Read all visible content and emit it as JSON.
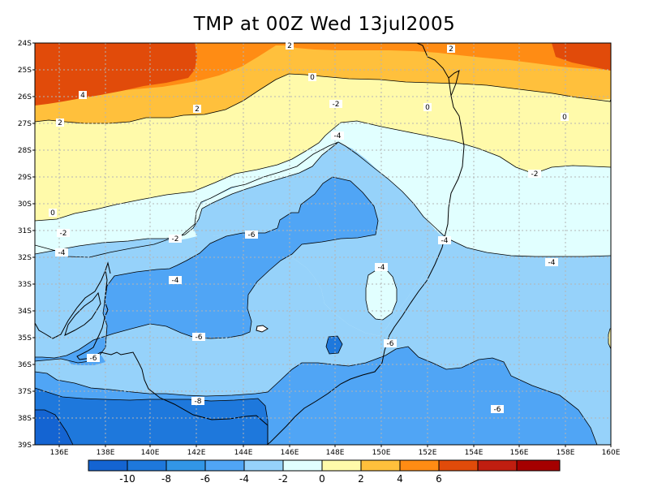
{
  "title": "TMP at 00Z Wed 13jul2005",
  "map": {
    "lat_ticks": [
      "24S",
      "25S",
      "26S",
      "27S",
      "28S",
      "29S",
      "30S",
      "31S",
      "32S",
      "33S",
      "34S",
      "35S",
      "36S",
      "37S",
      "38S",
      "39S"
    ],
    "lon_ticks": [
      "136E",
      "138E",
      "140E",
      "142E",
      "144E",
      "146E",
      "148E",
      "150E",
      "152E",
      "154E",
      "156E",
      "158E",
      "160E"
    ],
    "contour_labels": [
      "2",
      "2",
      "4",
      "2",
      "0",
      "0",
      "-2",
      "0",
      "0",
      "2",
      "-2",
      "-4",
      "-2",
      "-6",
      "-4",
      "-2",
      "-4",
      "-4",
      "-4",
      "-6",
      "-6",
      "-6",
      "-4",
      "-8",
      "-6"
    ]
  },
  "legend": {
    "tick_labels": [
      "-10",
      "-8",
      "-6",
      "-4",
      "-2",
      "0",
      "2",
      "4",
      "6"
    ],
    "colors": [
      "#1464d2",
      "#1e78dc",
      "#3296e6",
      "#50a5f5",
      "#96d2fa",
      "#e1ffff",
      "#fffaaa",
      "#ffc03c",
      "#ff8c14",
      "#e14b0a",
      "#c01e10",
      "#a50000"
    ]
  }
}
